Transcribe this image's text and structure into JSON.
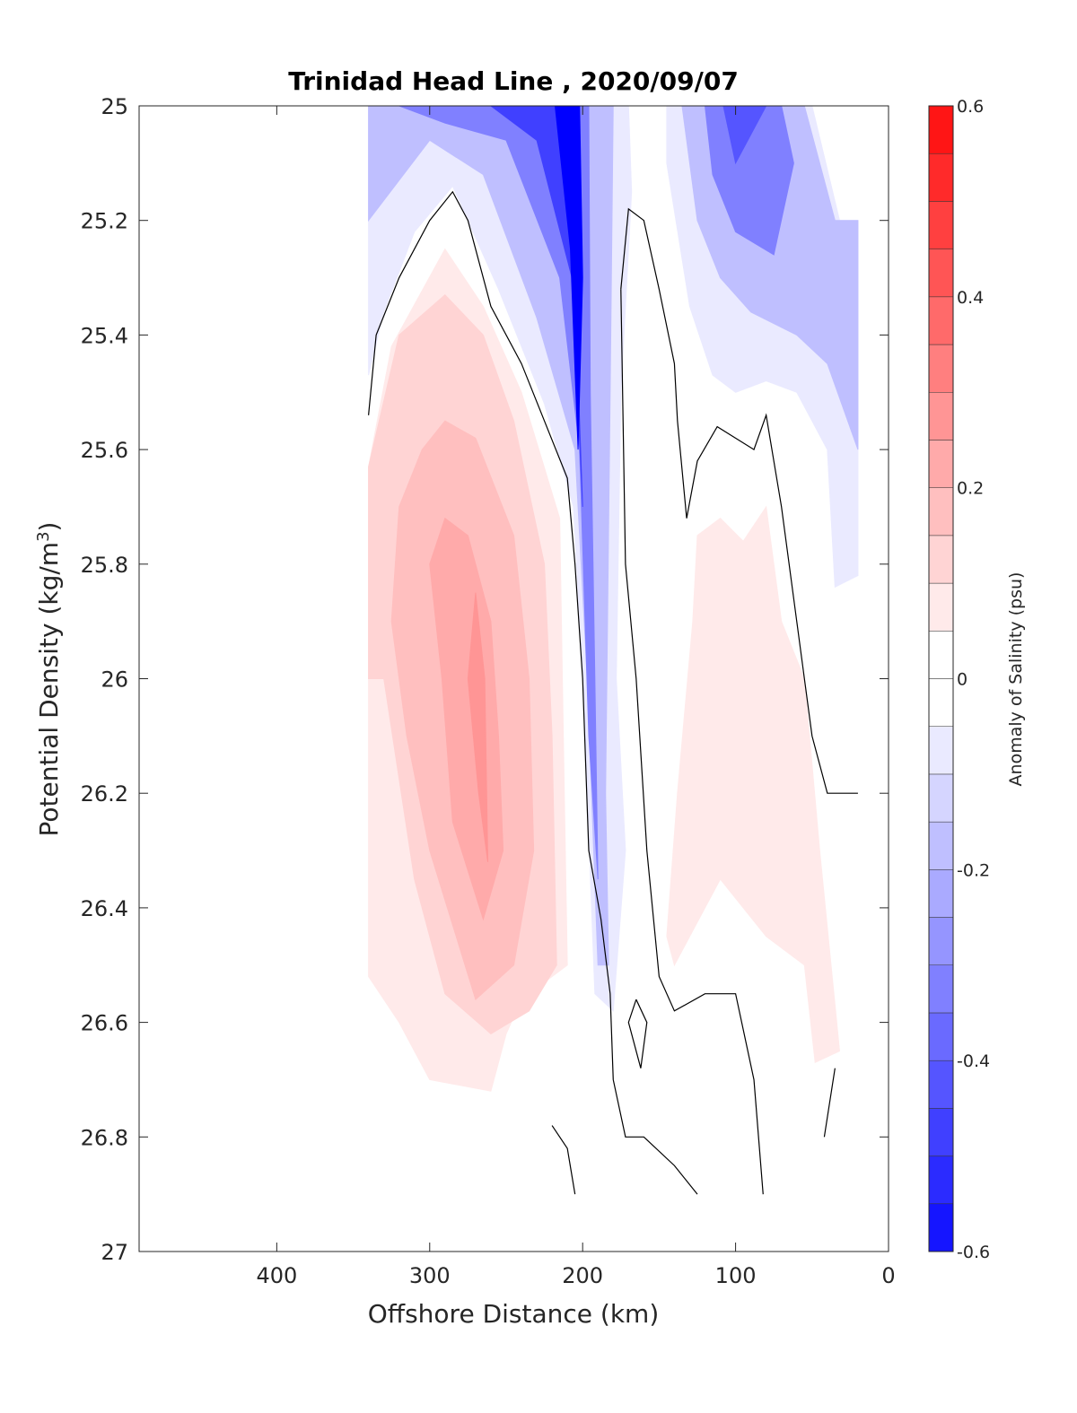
{
  "chart_data": {
    "type": "contour",
    "title": "Trinidad Head Line , 2020/09/07",
    "xlabel": "Offshore Distance (km)",
    "ylabel_main": "Potential Density (kg/m",
    "ylabel_sup": "3",
    "ylabel_close": ")",
    "colorbar_label": "Anomaly of Salinity (psu)",
    "xlim": [
      0,
      490
    ],
    "x_reversed": true,
    "ylim": [
      25,
      27
    ],
    "y_reversed": true,
    "xticks": [
      400,
      300,
      200,
      100,
      0
    ],
    "xtick_labels": [
      "400",
      "300",
      "200",
      "100",
      "0"
    ],
    "yticks": [
      25,
      25.2,
      25.4,
      25.6,
      25.8,
      26,
      26.2,
      26.4,
      26.6,
      26.8,
      27
    ],
    "ytick_labels": [
      "25",
      "25.2",
      "25.4",
      "25.6",
      "25.8",
      "26",
      "26.2",
      "26.4",
      "26.6",
      "26.8",
      "27"
    ],
    "clim": [
      -0.6,
      0.6
    ],
    "level_step": 0.05,
    "cbticks": [
      -0.6,
      -0.4,
      -0.2,
      0,
      0.2,
      0.4,
      0.6
    ],
    "cbtick_labels": [
      "-0.6",
      "-0.4",
      "-0.2",
      "0",
      "0.2",
      "0.4",
      "0.6"
    ],
    "colors": {
      "negative": "#0000ff",
      "positive": "#ff0000",
      "zero": "#ffffff"
    },
    "filled_regions": [
      {
        "level": -0.05,
        "points": [
          [
            340,
            25
          ],
          [
            170,
            25
          ],
          [
            168,
            25.15
          ],
          [
            175,
            25.5
          ],
          [
            178,
            26.0
          ],
          [
            172,
            26.3
          ],
          [
            180,
            26.58
          ],
          [
            192,
            26.55
          ],
          [
            200,
            26.0
          ],
          [
            206,
            25.7
          ],
          [
            225,
            25.52
          ],
          [
            255,
            25.32
          ],
          [
            285,
            25.14
          ],
          [
            310,
            25.22
          ],
          [
            330,
            25.36
          ],
          [
            340,
            25.47
          ]
        ]
      },
      {
        "level": -0.15,
        "points": [
          [
            340,
            25
          ],
          [
            180,
            25
          ],
          [
            182,
            25.5
          ],
          [
            185,
            26.2
          ],
          [
            183,
            26.5
          ],
          [
            190,
            26.5
          ],
          [
            197,
            26.0
          ],
          [
            205,
            25.6
          ],
          [
            230,
            25.37
          ],
          [
            265,
            25.12
          ],
          [
            300,
            25.06
          ],
          [
            340,
            25.2
          ]
        ]
      },
      {
        "level": -0.3,
        "points": [
          [
            320,
            25
          ],
          [
            196,
            25
          ],
          [
            195,
            25.5
          ],
          [
            192,
            26.0
          ],
          [
            190,
            26.35
          ],
          [
            196,
            26.1
          ],
          [
            202,
            25.6
          ],
          [
            215,
            25.3
          ],
          [
            250,
            25.06
          ],
          [
            290,
            25.03
          ]
        ]
      },
      {
        "level": -0.45,
        "points": [
          [
            260,
            25
          ],
          [
            204,
            25
          ],
          [
            204,
            25.4
          ],
          [
            200,
            25.7
          ],
          [
            207,
            25.3
          ],
          [
            230,
            25.06
          ]
        ]
      },
      {
        "level": -0.6,
        "points": [
          [
            218,
            25
          ],
          [
            202,
            25
          ],
          [
            200,
            25.3
          ],
          [
            203,
            25.6
          ],
          [
            208,
            25.25
          ]
        ]
      },
      {
        "level": -0.05,
        "points": [
          [
            145,
            25
          ],
          [
            50,
            25
          ],
          [
            32,
            25.2
          ],
          [
            20,
            25.2
          ],
          [
            20,
            25.82
          ],
          [
            35,
            25.84
          ],
          [
            40,
            25.6
          ],
          [
            60,
            25.5
          ],
          [
            80,
            25.48
          ],
          [
            100,
            25.5
          ],
          [
            115,
            25.47
          ],
          [
            130,
            25.35
          ],
          [
            145,
            25.1
          ]
        ]
      },
      {
        "level": -0.15,
        "points": [
          [
            135,
            25
          ],
          [
            55,
            25
          ],
          [
            35,
            25.2
          ],
          [
            20,
            25.2
          ],
          [
            20,
            25.6
          ],
          [
            40,
            25.45
          ],
          [
            60,
            25.4
          ],
          [
            90,
            25.36
          ],
          [
            110,
            25.3
          ],
          [
            125,
            25.2
          ]
        ]
      },
      {
        "level": -0.3,
        "points": [
          [
            120,
            25
          ],
          [
            70,
            25
          ],
          [
            62,
            25.1
          ],
          [
            75,
            25.26
          ],
          [
            100,
            25.22
          ],
          [
            115,
            25.12
          ]
        ]
      },
      {
        "level": -0.4,
        "points": [
          [
            108,
            25
          ],
          [
            80,
            25
          ],
          [
            100,
            25.1
          ]
        ]
      },
      {
        "level": 0.05,
        "points": [
          [
            340,
            25.63
          ],
          [
            325,
            25.42
          ],
          [
            290,
            25.25
          ],
          [
            265,
            25.35
          ],
          [
            240,
            25.5
          ],
          [
            215,
            25.72
          ],
          [
            212,
            26.2
          ],
          [
            210,
            26.5
          ],
          [
            240,
            26.56
          ],
          [
            250,
            26.62
          ],
          [
            260,
            26.72
          ],
          [
            300,
            26.7
          ],
          [
            320,
            26.6
          ],
          [
            340,
            26.52
          ]
        ]
      },
      {
        "level": 0.1,
        "points": [
          [
            340,
            25.63
          ],
          [
            320,
            25.4
          ],
          [
            290,
            25.33
          ],
          [
            265,
            25.4
          ],
          [
            245,
            25.55
          ],
          [
            225,
            25.8
          ],
          [
            220,
            26.1
          ],
          [
            217,
            26.5
          ],
          [
            235,
            26.58
          ],
          [
            260,
            26.62
          ],
          [
            290,
            26.55
          ],
          [
            310,
            26.35
          ],
          [
            330,
            26.0
          ],
          [
            340,
            26.0
          ]
        ]
      },
      {
        "level": 0.15,
        "points": [
          [
            325,
            25.9
          ],
          [
            320,
            25.7
          ],
          [
            305,
            25.6
          ],
          [
            290,
            25.55
          ],
          [
            270,
            25.58
          ],
          [
            245,
            25.75
          ],
          [
            235,
            26.0
          ],
          [
            232,
            26.3
          ],
          [
            245,
            26.5
          ],
          [
            270,
            26.56
          ],
          [
            300,
            26.3
          ],
          [
            315,
            26.1
          ]
        ]
      },
      {
        "level": 0.2,
        "points": [
          [
            300,
            25.8
          ],
          [
            290,
            25.72
          ],
          [
            275,
            25.75
          ],
          [
            260,
            25.9
          ],
          [
            255,
            26.1
          ],
          [
            252,
            26.3
          ],
          [
            265,
            26.42
          ],
          [
            285,
            26.25
          ],
          [
            292,
            26.0
          ]
        ]
      },
      {
        "level": 0.25,
        "points": [
          [
            270,
            25.85
          ],
          [
            264,
            26.0
          ],
          [
            262,
            26.32
          ],
          [
            268,
            26.2
          ],
          [
            275,
            26.0
          ]
        ]
      },
      {
        "level": 0.05,
        "points": [
          [
            128,
            25.9
          ],
          [
            125,
            25.75
          ],
          [
            110,
            25.72
          ],
          [
            95,
            25.76
          ],
          [
            80,
            25.7
          ],
          [
            70,
            25.9
          ],
          [
            55,
            26.0
          ],
          [
            45,
            26.3
          ],
          [
            32,
            26.65
          ],
          [
            48,
            26.67
          ],
          [
            55,
            26.5
          ],
          [
            80,
            26.45
          ],
          [
            110,
            26.35
          ],
          [
            140,
            26.5
          ],
          [
            145,
            26.45
          ],
          [
            138,
            26.2
          ]
        ]
      }
    ],
    "zero_contours": [
      [
        [
          340,
          25.54
        ],
        [
          335,
          25.4
        ],
        [
          320,
          25.3
        ],
        [
          300,
          25.2
        ],
        [
          285,
          25.15
        ],
        [
          275,
          25.2
        ],
        [
          260,
          25.35
        ],
        [
          240,
          25.45
        ],
        [
          225,
          25.55
        ],
        [
          210,
          25.65
        ],
        [
          205,
          25.8
        ],
        [
          200,
          26.0
        ],
        [
          196,
          26.3
        ],
        [
          188,
          26.42
        ],
        [
          182,
          26.55
        ],
        [
          180,
          26.7
        ],
        [
          172,
          26.8
        ],
        [
          160,
          26.8
        ],
        [
          140,
          26.85
        ],
        [
          125,
          26.9
        ]
      ],
      [
        [
          175,
          25.32
        ],
        [
          170,
          25.18
        ],
        [
          160,
          25.2
        ],
        [
          150,
          25.32
        ],
        [
          140,
          25.45
        ],
        [
          138,
          25.55
        ],
        [
          132,
          25.72
        ],
        [
          125,
          25.62
        ],
        [
          112,
          25.56
        ],
        [
          100,
          25.58
        ],
        [
          88,
          25.6
        ],
        [
          80,
          25.54
        ],
        [
          70,
          25.7
        ],
        [
          60,
          25.9
        ],
        [
          50,
          26.1
        ],
        [
          40,
          26.2
        ],
        [
          20,
          26.2
        ]
      ],
      [
        [
          175,
          25.32
        ],
        [
          172,
          25.8
        ],
        [
          165,
          26.0
        ],
        [
          158,
          26.3
        ],
        [
          150,
          26.52
        ],
        [
          140,
          26.58
        ],
        [
          120,
          26.55
        ],
        [
          100,
          26.55
        ],
        [
          88,
          26.7
        ],
        [
          82,
          26.9
        ]
      ],
      [
        [
          165,
          26.56
        ],
        [
          158,
          26.6
        ],
        [
          162,
          26.68
        ],
        [
          170,
          26.6
        ],
        [
          165,
          26.56
        ]
      ],
      [
        [
          220,
          26.78
        ],
        [
          210,
          26.82
        ],
        [
          205,
          26.9
        ]
      ],
      [
        [
          35,
          26.68
        ],
        [
          42,
          26.8
        ]
      ]
    ]
  }
}
